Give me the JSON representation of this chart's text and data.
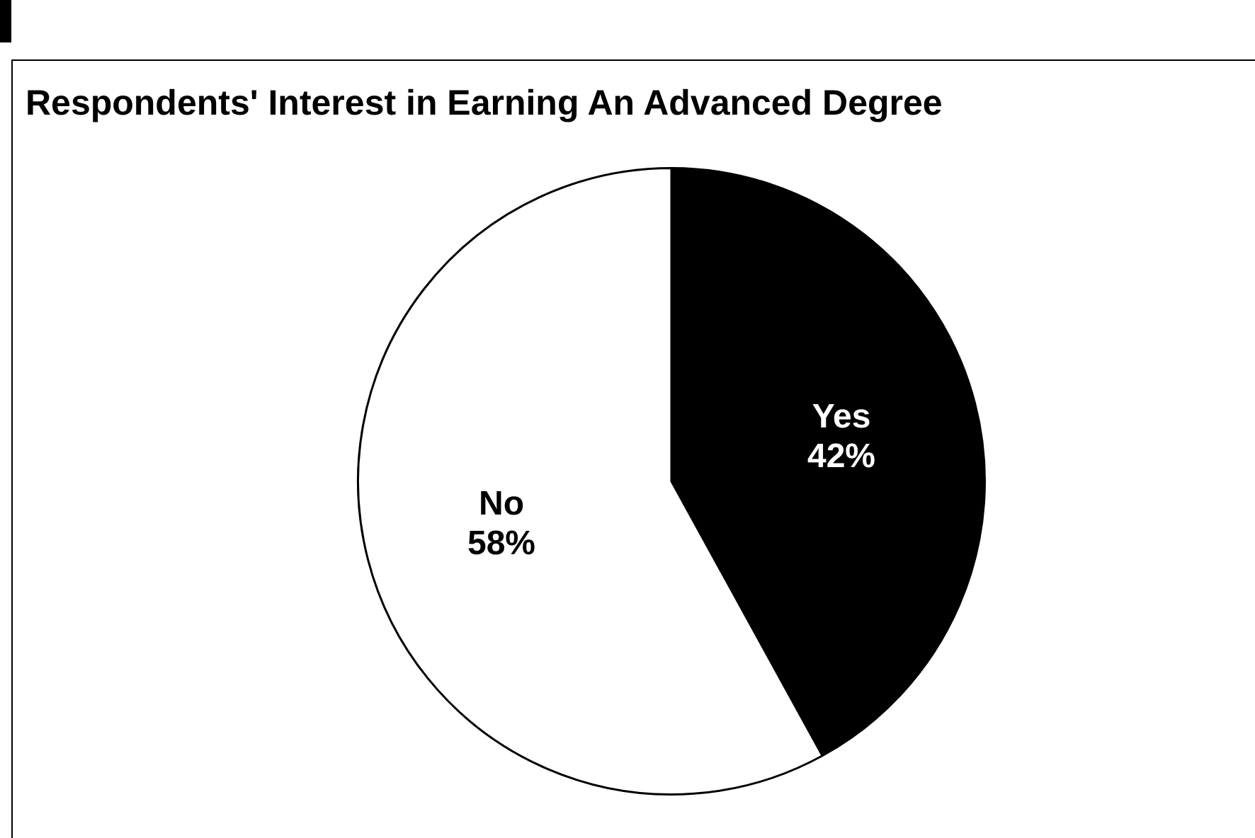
{
  "chart_data": {
    "type": "pie",
    "title": "Respondents' Interest in Earning An Advanced Degree",
    "categories": [
      "Yes",
      "No"
    ],
    "values": [
      42,
      58
    ],
    "value_labels": [
      "42%",
      "58%"
    ],
    "colors": [
      "#000000",
      "#ffffff"
    ],
    "legend": false
  }
}
